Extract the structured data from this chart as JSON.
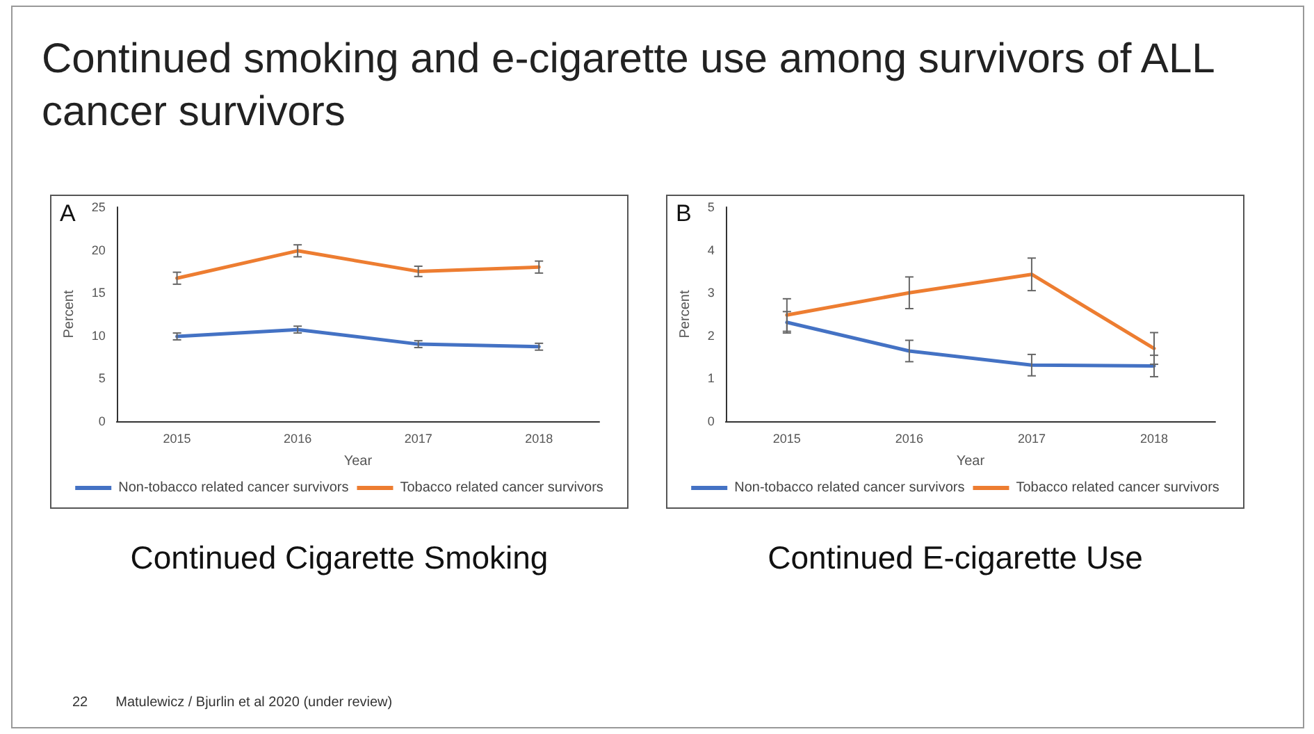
{
  "chart_data": [
    {
      "type": "line",
      "title": "Continued smoking and e-cigarette use among survivors of ALL cancer survivors",
      "xlabel": "Year",
      "ylabel": "Percent",
      "categories": [
        "2015",
        "2016",
        "2017",
        "2018"
      ],
      "series": [
        {
          "name": "Non-tobacco related cancer survivors",
          "color": "#4472c4",
          "values": [
            9.9,
            10.7,
            9.0,
            8.7
          ],
          "errors": [
            0.4,
            0.4,
            0.4,
            0.4
          ]
        },
        {
          "name": "Tobacco related cancer survivors",
          "color": "#ed7d31",
          "values": [
            16.7,
            19.9,
            17.5,
            18.0
          ],
          "errors": [
            0.7,
            0.7,
            0.6,
            0.7
          ]
        }
      ],
      "ylim": [
        0,
        25
      ],
      "yticks": [
        0,
        5,
        10,
        15,
        20,
        25
      ],
      "grid": false,
      "legend": "bottom",
      "marker": "none",
      "line_style": "solid",
      "annotations": [
        "A",
        "Continued Cigarette Smoking"
      ]
    },
    {
      "type": "line",
      "xlabel": "Year",
      "ylabel": "Percent",
      "categories": [
        "2015",
        "2016",
        "2017",
        "2018"
      ],
      "series": [
        {
          "name": "Non-tobacco related cancer survivors",
          "color": "#4472c4",
          "values": [
            2.31,
            1.64,
            1.31,
            1.29
          ],
          "errors": [
            0.25,
            0.25,
            0.25,
            0.25
          ]
        },
        {
          "name": "Tobacco related cancer survivors",
          "color": "#ed7d31",
          "values": [
            2.48,
            3.0,
            3.43,
            1.7
          ],
          "errors": [
            0.38,
            0.37,
            0.38,
            0.37
          ]
        }
      ],
      "ylim": [
        0,
        5
      ],
      "yticks": [
        0,
        1,
        2,
        3,
        4,
        5
      ],
      "grid": false,
      "legend": "bottom",
      "marker": "none",
      "line_style": "solid",
      "annotations": [
        "B",
        "Continued E-cigarette Use",
        "22",
        "Matulewicz / Bjurlin et al 2020 (under review)"
      ]
    }
  ]
}
